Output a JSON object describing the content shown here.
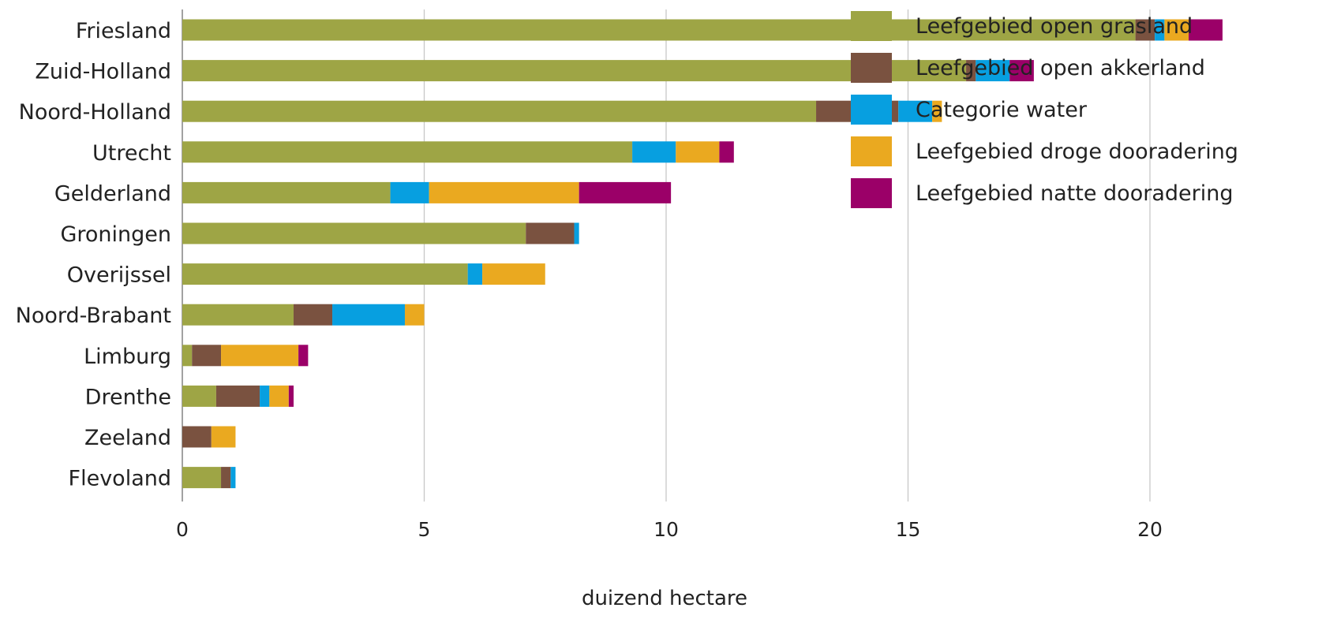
{
  "chart_data": {
    "type": "bar",
    "orientation": "horizontal",
    "stacked": true,
    "title": "",
    "xlabel": "duizend hectare",
    "ylabel": "",
    "xlim": [
      0,
      25
    ],
    "xticks": [
      0,
      5,
      10,
      15,
      20,
      25
    ],
    "grid": "vertical",
    "legend_position": "top-right",
    "categories": [
      "Friesland",
      "Zuid-Holland",
      "Noord-Holland",
      "Utrecht",
      "Gelderland",
      "Groningen",
      "Overijssel",
      "Noord-Brabant",
      "Limburg",
      "Drenthe",
      "Zeeland",
      "Flevoland"
    ],
    "series": [
      {
        "name": "Leefgebied open grasland",
        "color": "#9ea545",
        "values": [
          19.7,
          16.2,
          13.1,
          9.3,
          4.3,
          7.1,
          5.9,
          2.3,
          0.2,
          0.7,
          0.0,
          0.8
        ]
      },
      {
        "name": "Leefgebied open akkerland",
        "color": "#7a5240",
        "values": [
          0.4,
          0.2,
          1.7,
          0.0,
          0.0,
          1.0,
          0.0,
          0.8,
          0.6,
          0.9,
          0.6,
          0.2
        ]
      },
      {
        "name": "Categorie water",
        "color": "#079fe0",
        "values": [
          0.2,
          0.7,
          0.7,
          0.9,
          0.8,
          0.1,
          0.3,
          1.5,
          0.0,
          0.2,
          0.0,
          0.1
        ]
      },
      {
        "name": "Leefgebied droge dooradering",
        "color": "#eaa920",
        "values": [
          0.5,
          0.0,
          0.2,
          0.9,
          3.1,
          0.0,
          1.3,
          0.4,
          1.6,
          0.4,
          0.5,
          0.0
        ]
      },
      {
        "name": "Leefgebied natte dooradering",
        "color": "#9b0068",
        "values": [
          0.7,
          0.5,
          0.0,
          0.3,
          1.9,
          0.0,
          0.0,
          0.0,
          0.2,
          0.1,
          0.0,
          0.0
        ]
      }
    ]
  }
}
